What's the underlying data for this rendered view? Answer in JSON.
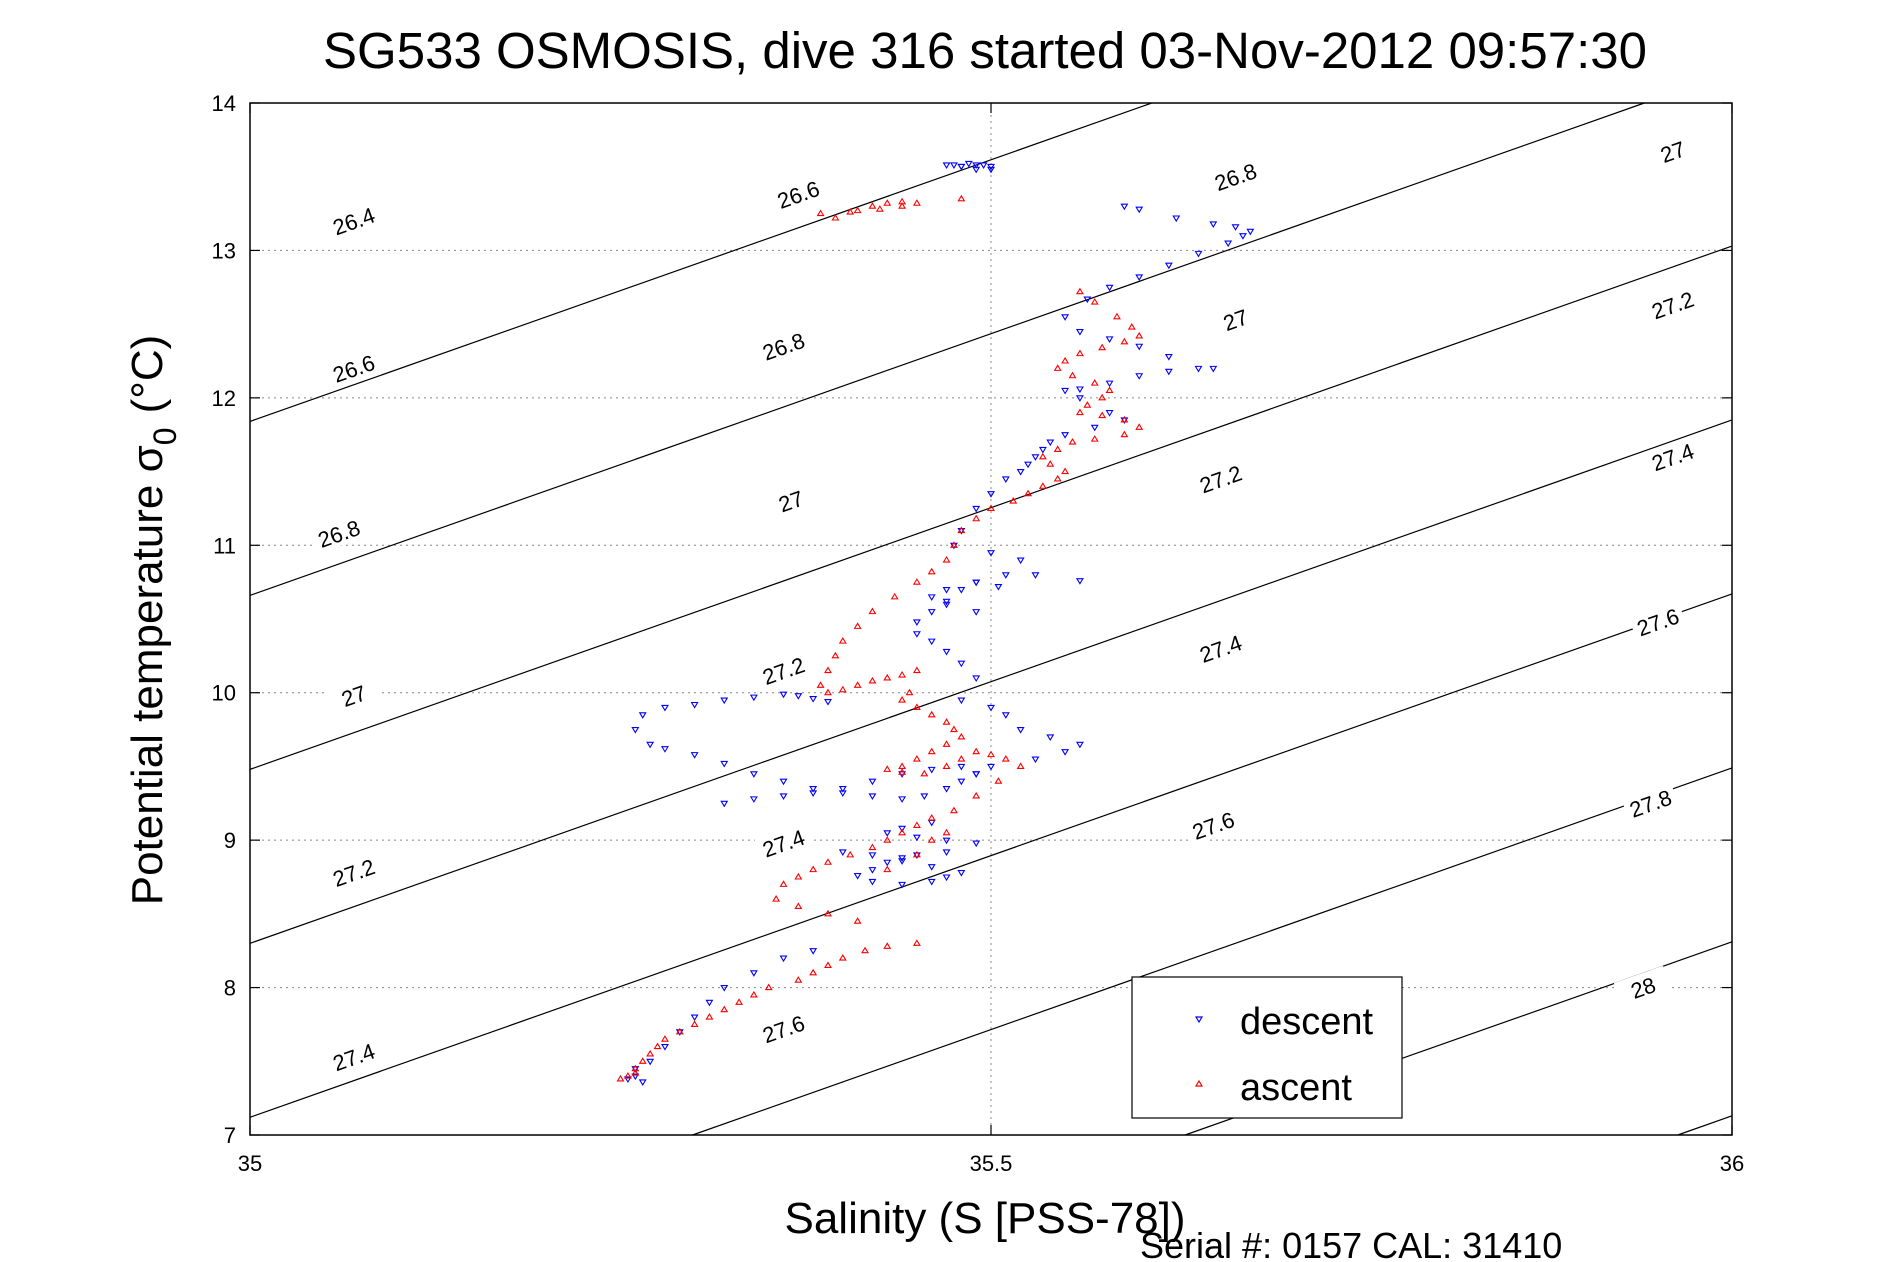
{
  "chart_data": {
    "type": "scatter",
    "title": "SG533 OSMOSIS, dive 316 started 03-Nov-2012 09:57:30",
    "xlabel": "Salinity (S [PSS-78])",
    "ylabel_main": "Potential temperature σ",
    "ylabel_sub": "0",
    "ylabel_unit": "(°C)",
    "xlim": [
      35,
      36
    ],
    "ylim": [
      7,
      14
    ],
    "x_ticks": [
      "35",
      "35.5",
      "36"
    ],
    "x_tick_values": [
      35,
      35.5,
      36
    ],
    "y_ticks": [
      "7",
      "8",
      "9",
      "10",
      "11",
      "12",
      "13",
      "14"
    ],
    "y_tick_values": [
      7,
      8,
      9,
      10,
      11,
      12,
      13,
      14
    ],
    "grid": true,
    "legend_position": "bottom-right",
    "footer": "Serial #: 0157  CAL: 31410",
    "contour_labels": [
      {
        "text": "26.4",
        "s": 35.07,
        "t": 13.2
      },
      {
        "text": "26.6",
        "s": 35.37,
        "t": 13.38
      },
      {
        "text": "26.6",
        "s": 35.07,
        "t": 12.2
      },
      {
        "text": "26.8",
        "s": 35.36,
        "t": 12.35
      },
      {
        "text": "26.8",
        "s": 35.665,
        "t": 13.5
      },
      {
        "text": "27",
        "s": 35.96,
        "t": 13.67
      },
      {
        "text": "26.8",
        "s": 35.06,
        "t": 11.08
      },
      {
        "text": "27",
        "s": 35.365,
        "t": 11.3
      },
      {
        "text": "27",
        "s": 35.665,
        "t": 12.53
      },
      {
        "text": "27.2",
        "s": 35.96,
        "t": 12.63
      },
      {
        "text": "27",
        "s": 35.07,
        "t": 9.98
      },
      {
        "text": "27.2",
        "s": 35.36,
        "t": 10.15
      },
      {
        "text": "27.2",
        "s": 35.655,
        "t": 11.45
      },
      {
        "text": "27.4",
        "s": 35.96,
        "t": 11.6
      },
      {
        "text": "27.2",
        "s": 35.07,
        "t": 8.78
      },
      {
        "text": "27.4",
        "s": 35.36,
        "t": 8.98
      },
      {
        "text": "27.4",
        "s": 35.655,
        "t": 10.3
      },
      {
        "text": "27.6",
        "s": 35.95,
        "t": 10.48
      },
      {
        "text": "27.4",
        "s": 35.07,
        "t": 7.53
      },
      {
        "text": "27.6",
        "s": 35.36,
        "t": 7.72
      },
      {
        "text": "27.6",
        "s": 35.65,
        "t": 9.1
      },
      {
        "text": "27.8",
        "s": 35.945,
        "t": 9.25
      },
      {
        "text": "28",
        "s": 35.94,
        "t": 8.0
      }
    ],
    "series": [
      {
        "name": "descent",
        "color": "#0000ff",
        "marker": "triangle-down",
        "s": [
          35.485,
          35.49,
          35.495,
          35.5,
          35.5,
          35.49,
          35.48,
          35.47,
          35.475,
          35.48,
          35.59,
          35.6,
          35.625,
          35.65,
          35.665,
          35.675,
          35.67,
          35.66,
          35.64,
          35.62,
          35.6,
          35.58,
          35.565,
          35.55,
          35.56,
          35.58,
          35.6,
          35.62,
          35.64,
          35.65,
          35.62,
          35.6,
          35.58,
          35.56,
          35.55,
          35.56,
          35.58,
          35.59,
          35.57,
          35.55,
          35.54,
          35.535,
          35.53,
          35.525,
          35.52,
          35.51,
          35.5,
          35.49,
          35.48,
          35.475,
          35.5,
          35.52,
          35.51,
          35.49,
          35.47,
          35.46,
          35.47,
          35.49,
          35.56,
          35.53,
          35.505,
          35.49,
          35.48,
          35.47,
          35.46,
          35.45,
          35.45,
          35.46,
          35.47,
          35.48,
          35.49,
          35.48,
          35.5,
          35.51,
          35.52,
          35.54,
          35.56,
          35.55,
          35.53,
          35.5,
          35.49,
          35.48,
          35.47,
          35.455,
          35.44,
          35.42,
          35.4,
          35.38,
          35.36,
          35.34,
          35.32,
          35.3,
          35.28,
          35.27,
          35.26,
          35.265,
          35.28,
          35.3,
          35.32,
          35.34,
          35.36,
          35.37,
          35.38,
          35.39,
          35.32,
          35.34,
          35.36,
          35.38,
          35.4,
          35.42,
          35.44,
          35.46,
          35.48,
          35.49,
          35.46,
          35.44,
          35.43,
          35.45,
          35.47,
          35.49,
          35.47,
          35.45,
          35.44,
          35.43,
          35.42,
          35.41,
          35.42,
          35.44,
          35.46,
          35.47,
          35.48,
          35.46,
          35.44,
          35.42,
          35.4,
          35.38,
          35.36,
          35.34,
          35.32,
          35.31,
          35.3,
          35.29,
          35.28,
          35.27,
          35.26,
          35.26,
          35.255,
          35.265
        ],
        "t": [
          13.59,
          13.58,
          13.58,
          13.57,
          13.55,
          13.55,
          13.57,
          13.58,
          13.58,
          13.57,
          13.3,
          13.28,
          13.22,
          13.18,
          13.16,
          13.13,
          13.1,
          13.05,
          12.98,
          12.9,
          12.82,
          12.75,
          12.67,
          12.55,
          12.45,
          12.4,
          12.35,
          12.28,
          12.2,
          12.2,
          12.18,
          12.15,
          12.1,
          12.06,
          12.05,
          12.0,
          11.9,
          11.85,
          11.8,
          11.75,
          11.7,
          11.65,
          11.6,
          11.55,
          11.5,
          11.45,
          11.35,
          11.25,
          11.1,
          11.0,
          10.95,
          10.9,
          10.8,
          10.75,
          10.7,
          10.65,
          10.6,
          10.55,
          10.76,
          10.8,
          10.72,
          10.75,
          10.7,
          10.62,
          10.55,
          10.48,
          10.4,
          10.35,
          10.28,
          10.2,
          10.1,
          9.95,
          9.9,
          9.85,
          9.75,
          9.7,
          9.65,
          9.6,
          9.55,
          9.5,
          9.45,
          9.4,
          9.35,
          9.3,
          9.28,
          9.3,
          9.32,
          9.35,
          9.4,
          9.45,
          9.52,
          9.58,
          9.62,
          9.65,
          9.75,
          9.85,
          9.9,
          9.92,
          9.95,
          9.97,
          9.99,
          9.98,
          9.96,
          9.94,
          9.25,
          9.28,
          9.3,
          9.32,
          9.35,
          9.4,
          9.45,
          9.48,
          9.5,
          9.45,
          9.12,
          9.08,
          9.05,
          9.02,
          9.0,
          8.98,
          8.92,
          8.9,
          8.88,
          8.85,
          8.8,
          8.76,
          8.72,
          8.7,
          8.72,
          8.75,
          8.78,
          8.82,
          8.86,
          8.9,
          8.92,
          8.25,
          8.2,
          8.1,
          8.0,
          7.9,
          7.8,
          7.7,
          7.6,
          7.5,
          7.45,
          7.4,
          7.38,
          7.36,
          7.42
        ]
      },
      {
        "name": "ascent",
        "color": "#ff0000",
        "marker": "triangle-up",
        "s": [
          35.395,
          35.41,
          35.42,
          35.43,
          35.44,
          35.45,
          35.44,
          35.425,
          35.405,
          35.385,
          35.48,
          35.56,
          35.57,
          35.585,
          35.595,
          35.6,
          35.59,
          35.575,
          35.56,
          35.55,
          35.545,
          35.555,
          35.57,
          35.58,
          35.575,
          35.565,
          35.56,
          35.575,
          35.59,
          35.6,
          35.59,
          35.57,
          35.555,
          35.545,
          35.535,
          35.54,
          35.55,
          35.545,
          35.535,
          35.525,
          35.515,
          35.5,
          35.49,
          35.48,
          35.475,
          35.47,
          35.46,
          35.45,
          35.435,
          35.42,
          35.41,
          35.4,
          35.395,
          35.39,
          35.385,
          35.39,
          35.4,
          35.41,
          35.42,
          35.43,
          35.44,
          35.45,
          35.445,
          35.44,
          35.45,
          35.46,
          35.47,
          35.475,
          35.48,
          35.47,
          35.46,
          35.45,
          35.44,
          35.43,
          35.44,
          35.455,
          35.47,
          35.48,
          35.49,
          35.5,
          35.51,
          35.52,
          35.505,
          35.49,
          35.475,
          35.46,
          35.45,
          35.44,
          35.43,
          35.42,
          35.405,
          35.39,
          35.38,
          35.37,
          35.36,
          35.355,
          35.37,
          35.39,
          35.41,
          35.43,
          35.45,
          35.46,
          35.47,
          35.45,
          35.43,
          35.415,
          35.4,
          35.39,
          35.38,
          35.37,
          35.35,
          35.34,
          35.33,
          35.32,
          35.31,
          35.3,
          35.29,
          35.28,
          35.275,
          35.27,
          35.265,
          35.26,
          35.255,
          35.25,
          35.26
        ],
        "t": [
          13.22,
          13.27,
          13.3,
          13.32,
          13.33,
          13.32,
          13.3,
          13.28,
          13.26,
          13.25,
          13.35,
          12.72,
          12.65,
          12.55,
          12.48,
          12.42,
          12.38,
          12.34,
          12.3,
          12.25,
          12.2,
          12.15,
          12.1,
          12.05,
          12.0,
          11.95,
          11.9,
          11.88,
          11.85,
          11.8,
          11.75,
          11.72,
          11.7,
          11.65,
          11.6,
          11.55,
          11.5,
          11.45,
          11.4,
          11.35,
          11.3,
          11.25,
          11.18,
          11.1,
          11.0,
          10.9,
          10.82,
          10.75,
          10.65,
          10.55,
          10.45,
          10.35,
          10.25,
          10.15,
          10.05,
          10.0,
          10.02,
          10.05,
          10.08,
          10.1,
          10.12,
          10.15,
          10.0,
          9.95,
          9.9,
          9.85,
          9.8,
          9.75,
          9.7,
          9.65,
          9.6,
          9.55,
          9.5,
          9.48,
          9.46,
          9.45,
          9.5,
          9.55,
          9.6,
          9.58,
          9.55,
          9.5,
          9.4,
          9.3,
          9.2,
          9.15,
          9.1,
          9.05,
          9.0,
          8.95,
          8.9,
          8.85,
          8.8,
          8.75,
          8.7,
          8.6,
          8.55,
          8.5,
          8.45,
          8.8,
          8.9,
          9.0,
          9.05,
          8.3,
          8.28,
          8.25,
          8.2,
          8.15,
          8.1,
          8.05,
          8.0,
          7.95,
          7.9,
          7.85,
          7.8,
          7.75,
          7.7,
          7.65,
          7.6,
          7.55,
          7.5,
          7.45,
          7.4,
          7.38,
          7.42
        ]
      }
    ]
  }
}
